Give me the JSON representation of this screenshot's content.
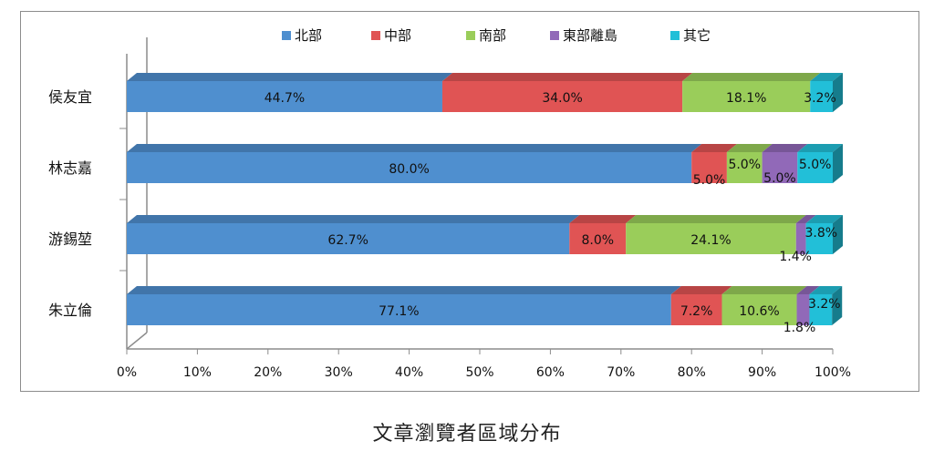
{
  "caption": "文章瀏覽者區域分布",
  "chart_data": {
    "type": "bar",
    "orientation": "horizontal",
    "stacked": "percent",
    "three_d": true,
    "categories": [
      "侯友宜",
      "林志嘉",
      "游錫堃",
      "朱立倫"
    ],
    "series": [
      {
        "name": "北部",
        "color": "#4F8FCF",
        "values": [
          44.7,
          80.0,
          62.7,
          77.1
        ],
        "labels": [
          "44.7%",
          "80.0%",
          "62.7%",
          "77.1%"
        ]
      },
      {
        "name": "中部",
        "color": "#E05454",
        "values": [
          34.0,
          5.0,
          8.0,
          7.2
        ],
        "labels": [
          "34.0%",
          "5.0%",
          "8.0%",
          "7.2%"
        ]
      },
      {
        "name": "南部",
        "color": "#9ACD5A",
        "values": [
          18.1,
          5.0,
          24.1,
          10.6
        ],
        "labels": [
          "18.1%",
          "5.0%",
          "24.1%",
          "10.6%"
        ]
      },
      {
        "name": "東部離島",
        "color": "#9169B8",
        "values": [
          0.0,
          5.0,
          1.4,
          1.8
        ],
        "labels": [
          "",
          "5.0%",
          "1.4%",
          "1.8%"
        ]
      },
      {
        "name": "其它",
        "color": "#22BFD8",
        "values": [
          3.2,
          5.0,
          3.8,
          3.2
        ],
        "labels": [
          "3.2%",
          "5.0%",
          "3.8%",
          "3.2%"
        ]
      }
    ],
    "x_ticks": [
      "0%",
      "10%",
      "20%",
      "30%",
      "40%",
      "50%",
      "60%",
      "70%",
      "80%",
      "90%",
      "100%"
    ],
    "xlim": [
      0,
      100
    ],
    "legend_position": "top",
    "grid": false
  }
}
